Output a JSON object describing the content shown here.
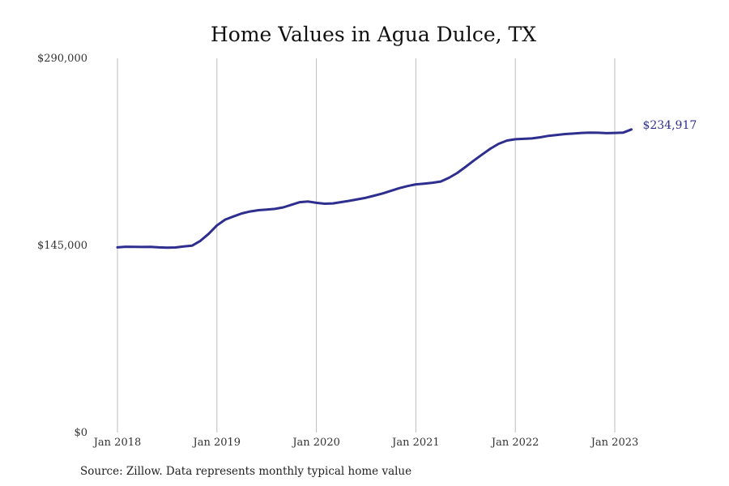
{
  "chart_data": {
    "type": "line",
    "title": "Home Values in Agua Dulce, TX",
    "xlabel": "",
    "ylabel": "",
    "ylim": [
      0,
      290000
    ],
    "y_ticks": [
      {
        "value": 0,
        "label": "$0"
      },
      {
        "value": 145000,
        "label": "$145,000"
      },
      {
        "value": 290000,
        "label": "$290,000"
      }
    ],
    "x_ticks": [
      {
        "value": "2018-01",
        "label": "Jan 2018"
      },
      {
        "value": "2019-01",
        "label": "Jan 2019"
      },
      {
        "value": "2020-01",
        "label": "Jan 2020"
      },
      {
        "value": "2021-01",
        "label": "Jan 2021"
      },
      {
        "value": "2022-01",
        "label": "Jan 2022"
      },
      {
        "value": "2023-01",
        "label": "Jan 2023"
      }
    ],
    "grid": {
      "vertical": true,
      "horizontal": false
    },
    "line_color": "#2e2e8f",
    "end_label": "$234,917",
    "series": [
      {
        "x": [
          "2018-01",
          "2018-02",
          "2018-03",
          "2018-04",
          "2018-05",
          "2018-06",
          "2018-07",
          "2018-08",
          "2018-09",
          "2018-10",
          "2018-11",
          "2018-12",
          "2019-01",
          "2019-02",
          "2019-03",
          "2019-04",
          "2019-05",
          "2019-06",
          "2019-07",
          "2019-08",
          "2019-09",
          "2019-10",
          "2019-11",
          "2019-12",
          "2020-01",
          "2020-02",
          "2020-03",
          "2020-04",
          "2020-05",
          "2020-06",
          "2020-07",
          "2020-08",
          "2020-09",
          "2020-10",
          "2020-11",
          "2020-12",
          "2021-01",
          "2021-02",
          "2021-03",
          "2021-04",
          "2021-05",
          "2021-06",
          "2021-07",
          "2021-08",
          "2021-09",
          "2021-10",
          "2021-11",
          "2021-12",
          "2022-01",
          "2022-02",
          "2022-03",
          "2022-04",
          "2022-05",
          "2022-06",
          "2022-07",
          "2022-08",
          "2022-09",
          "2022-10",
          "2022-11",
          "2022-12",
          "2023-01",
          "2023-02",
          "2023-03"
        ],
        "values": [
          143500,
          144000,
          143900,
          143800,
          143900,
          143500,
          143300,
          143400,
          144200,
          144800,
          148500,
          154000,
          160500,
          165000,
          167500,
          169800,
          171300,
          172300,
          172800,
          173300,
          174500,
          176500,
          178500,
          179000,
          178000,
          177300,
          177600,
          178600,
          179600,
          180800,
          182000,
          183600,
          185300,
          187300,
          189400,
          191000,
          192300,
          192900,
          193600,
          194500,
          197400,
          201200,
          205900,
          210800,
          215500,
          220000,
          223800,
          226300,
          227300,
          227600,
          227900,
          228800,
          229900,
          230600,
          231300,
          231700,
          232200,
          232400,
          232300,
          232000,
          232200,
          232400,
          234917
        ]
      }
    ]
  },
  "source_note": "Source: Zillow. Data represents monthly typical home value"
}
